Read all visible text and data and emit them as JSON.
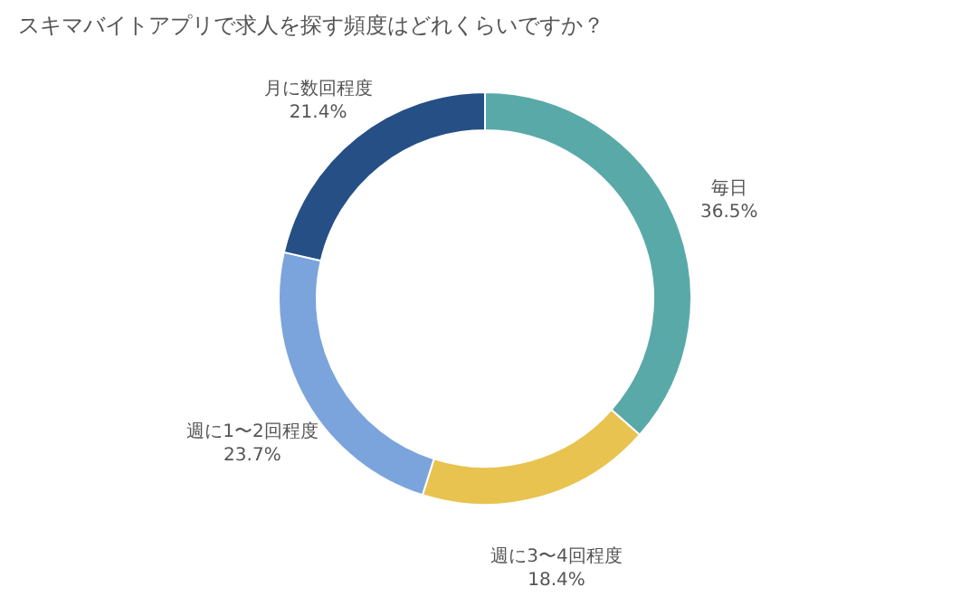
{
  "chart_data": {
    "type": "donut",
    "title": "スキマバイトアプリで求人を探す頻度はどれくらいですか？",
    "categories": [
      "毎日",
      "週に3〜4回程度",
      "週に1〜2回程度",
      "月に数回程度"
    ],
    "values": [
      36.5,
      18.4,
      23.7,
      21.4
    ],
    "value_labels": [
      "36.5%",
      "18.4%",
      "23.7%",
      "21.4%"
    ],
    "colors": [
      "#5aa9a9",
      "#e8c350",
      "#7ba4dc",
      "#264f85"
    ]
  }
}
